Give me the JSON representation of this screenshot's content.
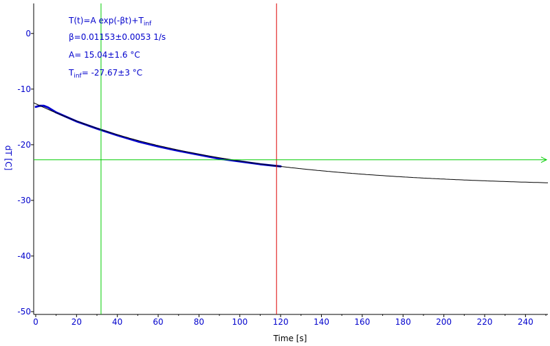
{
  "chart_data": {
    "type": "line",
    "xlabel": "Time [s]",
    "ylabel": "dT [C]",
    "xlim": [
      -1,
      251
    ],
    "ylim": [
      -50.5,
      5.4
    ],
    "x_ticks": [
      0,
      20,
      40,
      60,
      80,
      100,
      120,
      140,
      160,
      180,
      200,
      220,
      240
    ],
    "y_ticks": [
      0,
      -10,
      -20,
      -30,
      -40,
      -50
    ],
    "grid": false,
    "fit_params": {
      "formula": "T(t)=A exp(-βt)+T",
      "formula_sub": "inf",
      "beta": "β=0.01153±0.0053 1/s",
      "A": "A= 15.04±1.6 °C",
      "Tinf_prefix": "T",
      "Tinf_sub": "inf",
      "Tinf_value": "= -27.67±3 °C",
      "beta_value": 0.01153,
      "A_value": 15.04,
      "Tinf_value_num": -27.67
    },
    "series": [
      {
        "type": "measured",
        "color": "#0000cc",
        "x": [
          0,
          2,
          4,
          6,
          10,
          20,
          30,
          40,
          50,
          60,
          70,
          80,
          90,
          100,
          110,
          120
        ],
        "y": [
          -13.2,
          -13.0,
          -13.0,
          -13.3,
          -14.2,
          -15.8,
          -17.1,
          -18.3,
          -19.4,
          -20.3,
          -21.1,
          -21.8,
          -22.5,
          -23.0,
          -23.5,
          -23.9
        ]
      },
      {
        "type": "fit",
        "color": "#000000",
        "x_start": -1,
        "x_end": 251,
        "A": 15.04,
        "beta": 0.01153,
        "Tinf": -27.67
      }
    ],
    "markers": {
      "green_vertical_x": 32,
      "red_vertical_x": 118,
      "green_horizontal_y": -22.7,
      "green_color": "#00cc00",
      "red_color": "#dd0000"
    },
    "axis_color": "#000000",
    "tick_label_color": "#0000cc",
    "xlabel_color": "#000000",
    "ylabel_color": "#0000cc",
    "text_color": "#0000cc"
  }
}
